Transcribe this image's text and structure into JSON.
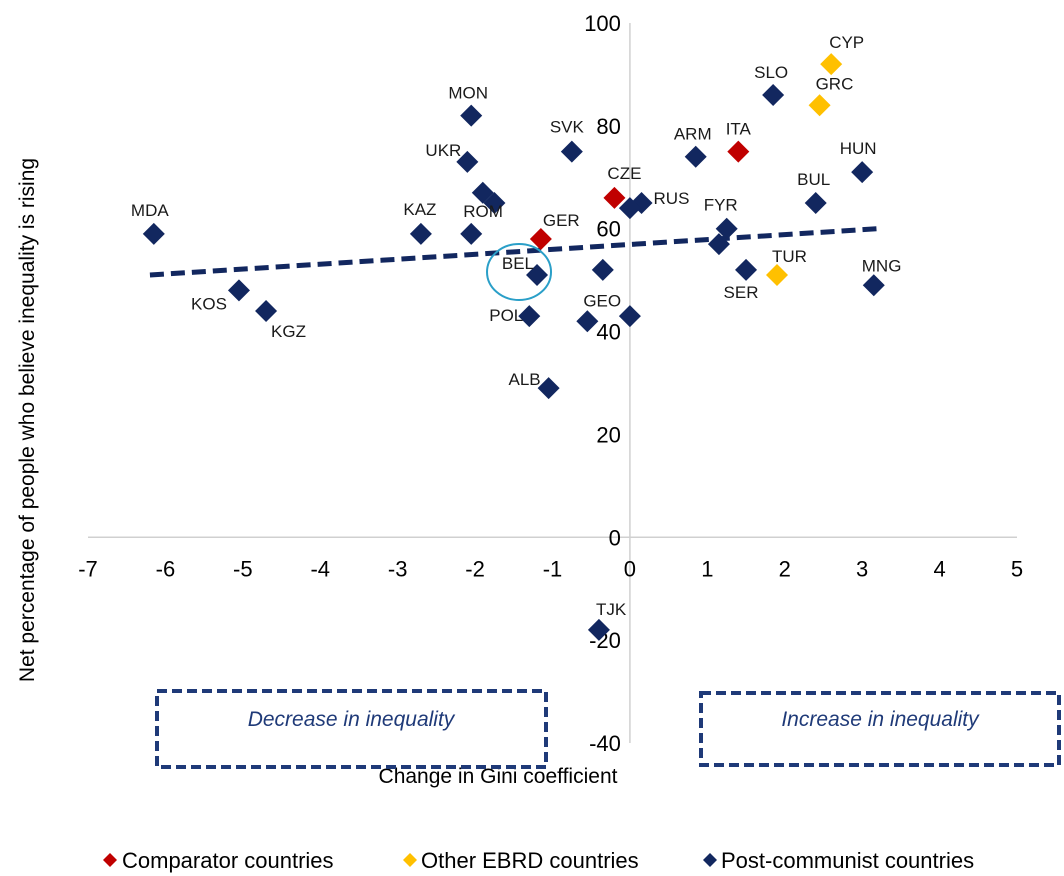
{
  "chart_data": {
    "type": "scatter",
    "xlabel": "Change in Gini coefficient",
    "ylabel": "Net percentage of people who believe inequality is rising",
    "xlim": [
      -7,
      5
    ],
    "ylim": [
      -40,
      100
    ],
    "x_ticks": [
      "-7",
      "-6",
      "-5",
      "-4",
      "-3",
      "-2",
      "-1",
      "0",
      "1",
      "2",
      "3",
      "4",
      "5"
    ],
    "y_ticks": [
      "-40",
      "-20",
      "0",
      "20",
      "40",
      "60",
      "80",
      "100"
    ],
    "grid": false,
    "legend_position": "bottom",
    "series": [
      {
        "name": "Comparator countries",
        "color": "#c00000",
        "points": [
          {
            "label": "ITA",
            "x": 1.4,
            "y": 75
          },
          {
            "label": "CZE",
            "x": -0.2,
            "y": 66
          },
          {
            "label": "GER",
            "x": -1.15,
            "y": 58
          }
        ]
      },
      {
        "name": "Other EBRD countries",
        "color": "#ffc000",
        "points": [
          {
            "label": "CYP",
            "x": 2.6,
            "y": 92
          },
          {
            "label": "GRC",
            "x": 2.45,
            "y": 84
          },
          {
            "label": "TUR",
            "x": 1.9,
            "y": 51
          }
        ]
      },
      {
        "name": "Post-communist countries",
        "color": "#12275f",
        "points": [
          {
            "label": "MDA",
            "x": -6.15,
            "y": 59
          },
          {
            "label": "KOS",
            "x": -5.05,
            "y": 48
          },
          {
            "label": "KGZ",
            "x": -4.7,
            "y": 44
          },
          {
            "label": "KAZ",
            "x": -2.7,
            "y": 59
          },
          {
            "label": "MON",
            "x": -2.05,
            "y": 82
          },
          {
            "label": "UKR",
            "x": -2.1,
            "y": 73
          },
          {
            "label": "",
            "x": -1.9,
            "y": 67
          },
          {
            "label": "",
            "x": -1.75,
            "y": 65
          },
          {
            "label": "ROM",
            "x": -2.05,
            "y": 59
          },
          {
            "label": "BEL",
            "x": -1.2,
            "y": 51
          },
          {
            "label": "POL",
            "x": -1.3,
            "y": 43
          },
          {
            "label": "SVK",
            "x": -0.75,
            "y": 75
          },
          {
            "label": "",
            "x": -0.35,
            "y": 52
          },
          {
            "label": "GEO",
            "x": -0.55,
            "y": 42
          },
          {
            "label": "",
            "x": 0,
            "y": 43
          },
          {
            "label": "ALB",
            "x": -1.05,
            "y": 29
          },
          {
            "label": "RUS",
            "x": 0.15,
            "y": 65
          },
          {
            "label": "",
            "x": 0,
            "y": 64
          },
          {
            "label": "ARM",
            "x": 0.85,
            "y": 74
          },
          {
            "label": "SLO",
            "x": 1.85,
            "y": 86
          },
          {
            "label": "FYR",
            "x": 1.25,
            "y": 60
          },
          {
            "label": "",
            "x": 1.15,
            "y": 57
          },
          {
            "label": "SER",
            "x": 1.5,
            "y": 52
          },
          {
            "label": "BUL",
            "x": 2.4,
            "y": 65
          },
          {
            "label": "HUN",
            "x": 3.0,
            "y": 71
          },
          {
            "label": "MNG",
            "x": 3.15,
            "y": 49
          },
          {
            "label": "TJK",
            "x": -0.4,
            "y": -18
          }
        ]
      }
    ],
    "trendline": {
      "x": [
        -6.2,
        3.2
      ],
      "y": [
        51,
        60
      ]
    },
    "highlight": {
      "label": "BEL"
    },
    "annotations": {
      "left_box": "Decrease in inequality",
      "right_box": "Increase in inequality"
    }
  }
}
